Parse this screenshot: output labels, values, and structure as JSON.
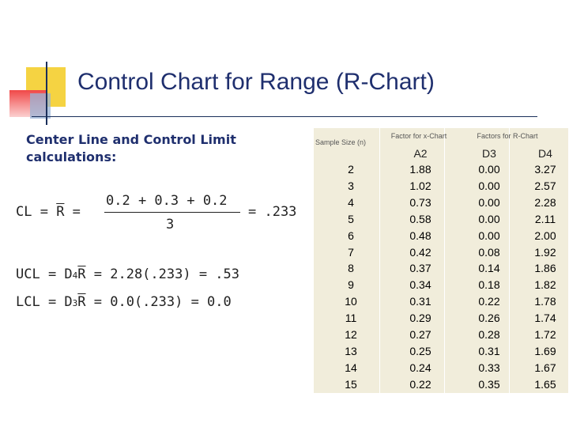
{
  "title": "Control Chart for Range (R-Chart)",
  "subtitle": "Center Line and Control Limit calculations:",
  "equations": {
    "cl_lhs": "CL = R =",
    "cl_numerator": "0.2 + 0.3 + 0.2",
    "cl_denominator": "3",
    "cl_result": "= .233",
    "ucl_prefix": "UCL = D",
    "ucl_sub": "4",
    "ucl_rest": "R = 2.28(.233) = .53",
    "lcl_prefix": "LCL = D",
    "lcl_sub": "3",
    "lcl_rest": "R = 0.0(.233) = 0.0"
  },
  "table": {
    "sample_size_header": "Sample Size (n)",
    "xchart_header": "Factor for x-Chart",
    "rchart_header": "Factors for R-Chart",
    "col_a2": "A2",
    "col_d3": "D3",
    "col_d4": "D4",
    "n": [
      "2",
      "3",
      "4",
      "5",
      "6",
      "7",
      "8",
      "9",
      "10",
      "11",
      "12",
      "13",
      "14",
      "15"
    ],
    "a2": [
      "1.88",
      "1.02",
      "0.73",
      "0.58",
      "0.48",
      "0.42",
      "0.37",
      "0.34",
      "0.31",
      "0.29",
      "0.27",
      "0.25",
      "0.24",
      "0.22"
    ],
    "d3": [
      "0.00",
      "0.00",
      "0.00",
      "0.00",
      "0.00",
      "0.08",
      "0.14",
      "0.18",
      "0.22",
      "0.26",
      "0.28",
      "0.31",
      "0.33",
      "0.35"
    ],
    "d4": [
      "3.27",
      "2.57",
      "2.28",
      "2.11",
      "2.00",
      "1.92",
      "1.86",
      "1.82",
      "1.78",
      "1.74",
      "1.72",
      "1.69",
      "1.67",
      "1.65"
    ]
  },
  "colors": {
    "title": "#1f2f6e",
    "table_bg": "#f1eddb",
    "accent_yellow": "#f5d342",
    "accent_red": "#f04848"
  }
}
